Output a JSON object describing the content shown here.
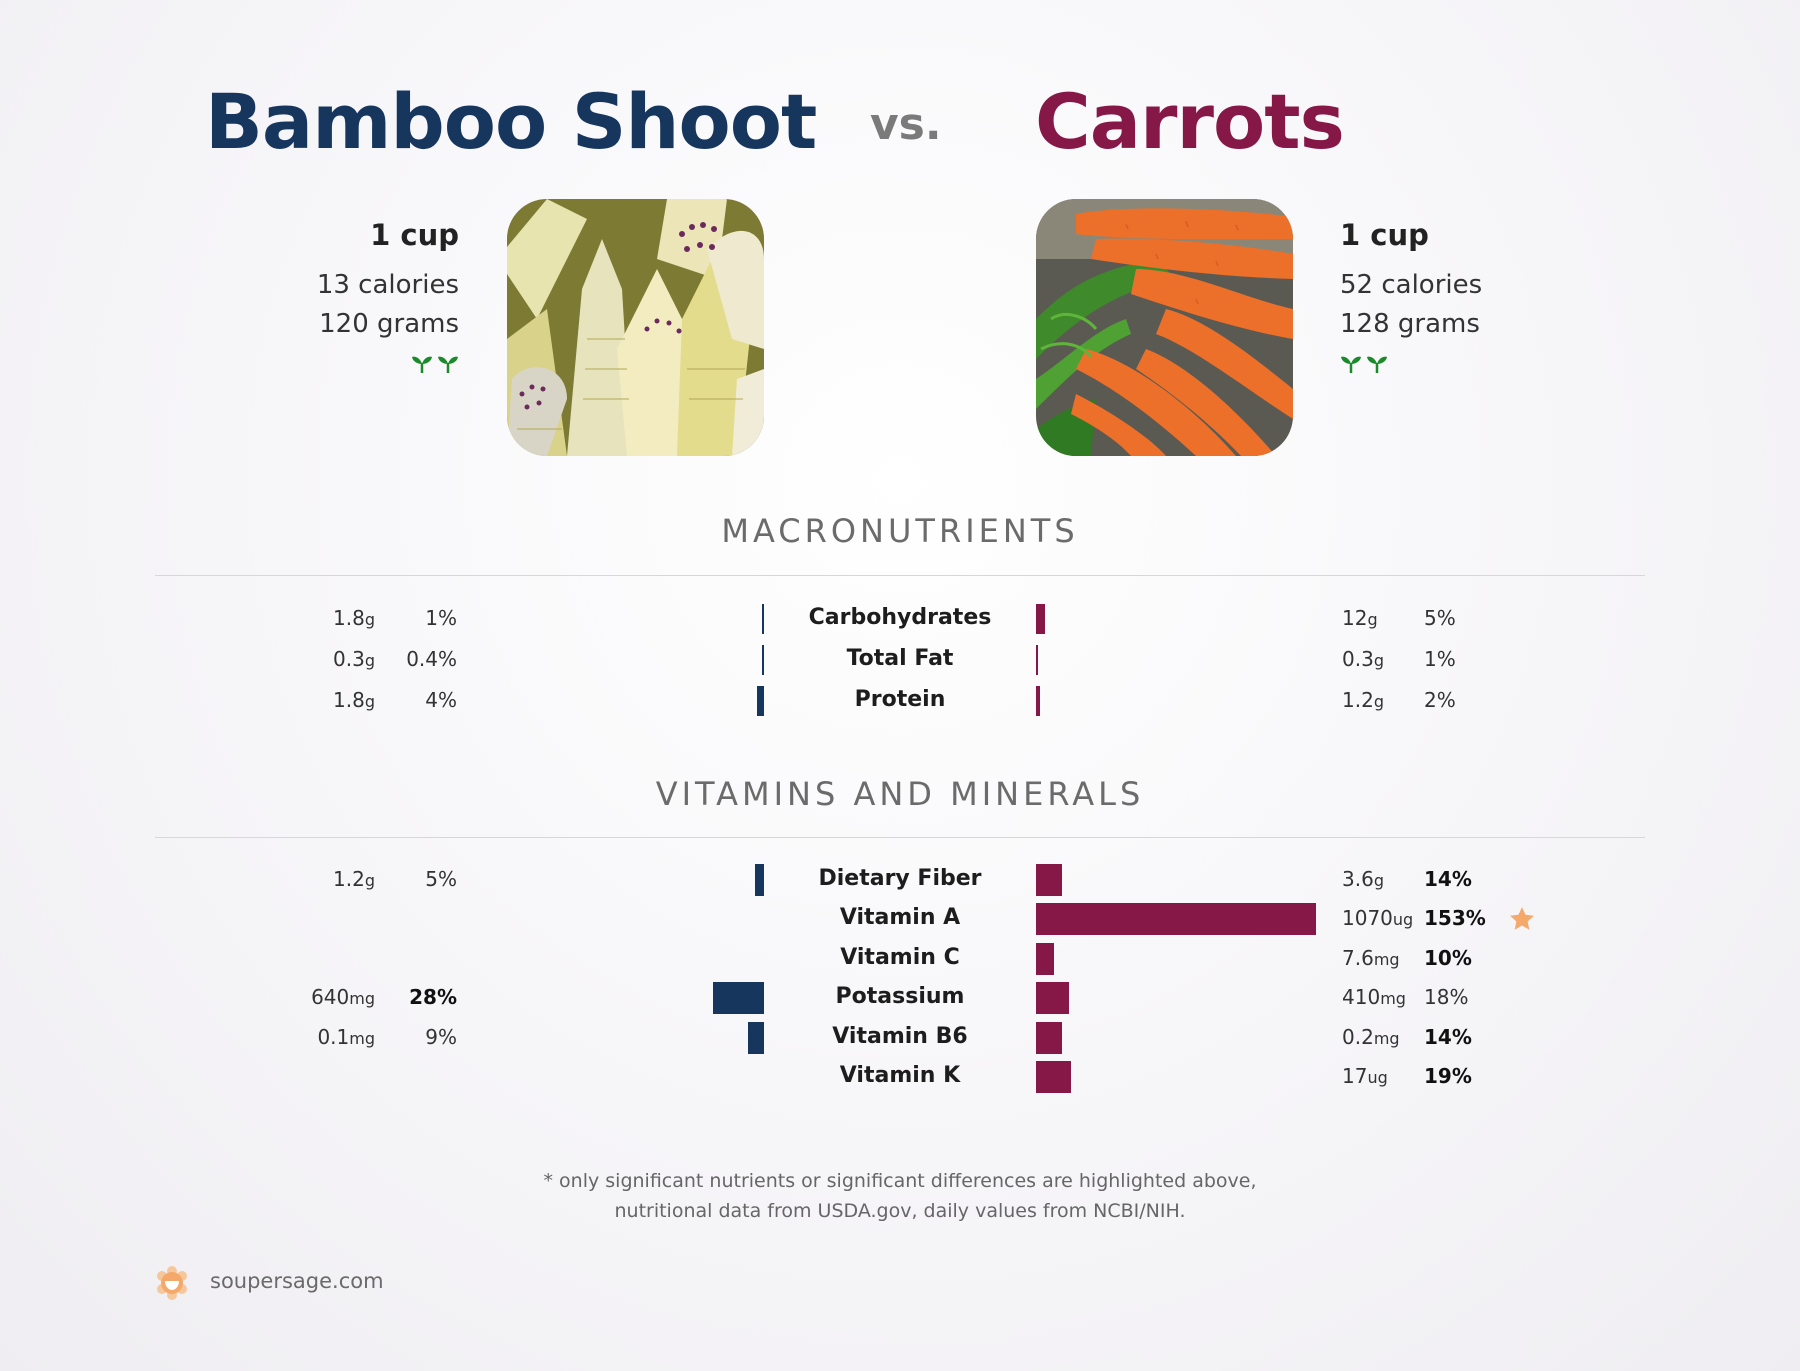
{
  "header": {
    "left_title": "Bamboo Shoot",
    "vs": "vs.",
    "right_title": "Carrots"
  },
  "colors": {
    "left": "#17365e",
    "right": "#861848",
    "leaf": "#1b8a2a",
    "star": "#f4a86a"
  },
  "left_food": {
    "serving": "1 cup",
    "calories": "13 calories",
    "grams": "120 grams",
    "icons": [
      "sprout-icon",
      "sprout-icon"
    ]
  },
  "right_food": {
    "serving": "1 cup",
    "calories": "52 calories",
    "grams": "128 grams",
    "icons": [
      "sprout-icon",
      "sprout-icon"
    ]
  },
  "sections": {
    "macros_title": "MACRONUTRIENTS",
    "vitamins_title": "VITAMINS AND MINERALS"
  },
  "chart_data": [
    {
      "type": "bar",
      "title": "MACRONUTRIENTS",
      "categories": [
        "Carbohydrates",
        "Total Fat",
        "Protein"
      ],
      "series": [
        {
          "name": "Bamboo Shoot",
          "values": [
            1,
            0.4,
            4
          ],
          "amounts": [
            "1.8",
            "0.3",
            "1.8"
          ],
          "units": [
            "g",
            "g",
            "g"
          ],
          "pct_labels": [
            "1%",
            "0.4%",
            "4%"
          ],
          "bold": [
            false,
            false,
            false
          ]
        },
        {
          "name": "Carrots",
          "values": [
            5,
            1,
            2
          ],
          "amounts": [
            "12",
            "0.3",
            "1.2"
          ],
          "units": [
            "g",
            "g",
            "g"
          ],
          "pct_labels": [
            "5%",
            "1%",
            "2%"
          ],
          "bold": [
            false,
            false,
            false
          ]
        }
      ]
    },
    {
      "type": "bar",
      "title": "VITAMINS AND MINERALS",
      "categories": [
        "Dietary Fiber",
        "Vitamin A",
        "Vitamin C",
        "Potassium",
        "Vitamin B6",
        "Vitamin K"
      ],
      "series": [
        {
          "name": "Bamboo Shoot",
          "values": [
            5,
            null,
            null,
            28,
            9,
            null
          ],
          "amounts": [
            "1.2",
            "",
            "",
            "640",
            "0.1",
            ""
          ],
          "units": [
            "g",
            "",
            "",
            "mg",
            "mg",
            ""
          ],
          "pct_labels": [
            "5%",
            "",
            "",
            "28%",
            "9%",
            ""
          ],
          "bold": [
            false,
            false,
            false,
            true,
            false,
            false
          ]
        },
        {
          "name": "Carrots",
          "values": [
            14,
            153,
            10,
            18,
            14,
            19
          ],
          "amounts": [
            "3.6",
            "1070",
            "7.6",
            "410",
            "0.2",
            "17"
          ],
          "units": [
            "g",
            "ug",
            "mg",
            "mg",
            "mg",
            "ug"
          ],
          "pct_labels": [
            "14%",
            "153%",
            "10%",
            "18%",
            "14%",
            "19%"
          ],
          "bold": [
            true,
            true,
            true,
            false,
            true,
            true
          ],
          "star": [
            false,
            true,
            false,
            false,
            false,
            false
          ]
        }
      ]
    }
  ],
  "footnote": {
    "line1": "* only significant nutrients or significant differences are highlighted above,",
    "line2": "nutritional data from USDA.gov, daily values from NCBI/NIH."
  },
  "brand": {
    "name": "soupersage.com"
  }
}
